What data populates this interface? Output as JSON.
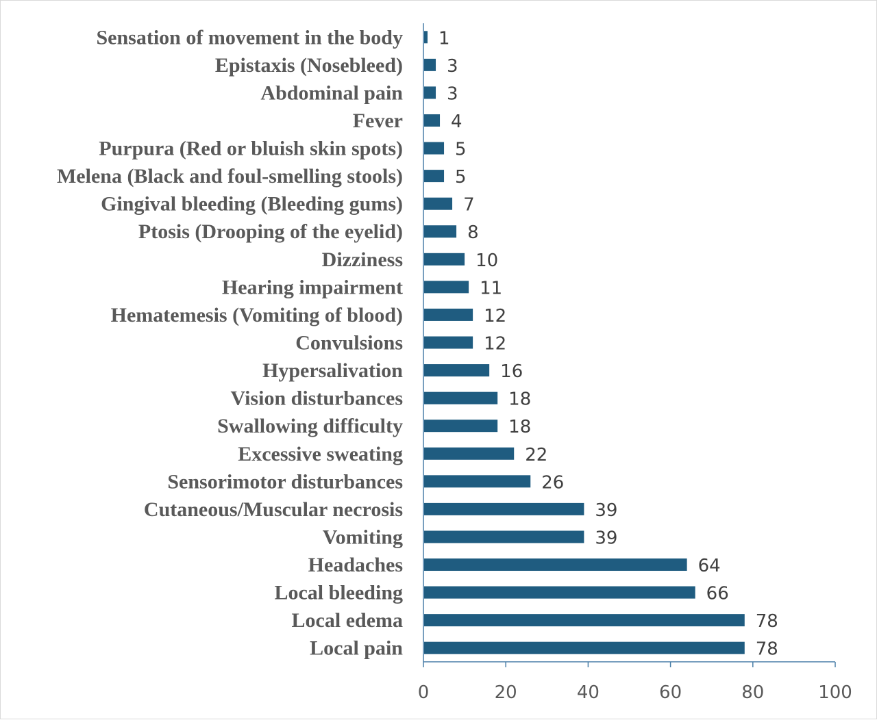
{
  "chart_data": {
    "type": "bar",
    "orientation": "horizontal",
    "title": "",
    "xlabel": "",
    "ylabel": "",
    "xlim": [
      0,
      100
    ],
    "xticks": [
      0,
      20,
      40,
      60,
      80,
      100
    ],
    "grid": false,
    "legend": "none",
    "bar_color": "#1f5c80",
    "axis_color": "#4a7fa8",
    "categories": [
      "Sensation of movement in the body",
      "Epistaxis (Nosebleed)",
      "Abdominal pain",
      "Fever",
      "Purpura (Red or bluish skin spots)",
      "Melena (Black and foul-smelling stools)",
      "Gingival bleeding (Bleeding gums)",
      "Ptosis (Drooping of the eyelid)",
      "Dizziness",
      "Hearing impairment",
      "Hematemesis (Vomiting of blood)",
      "Convulsions",
      "Hypersalivation",
      "Vision disturbances",
      "Swallowing difficulty",
      "Excessive sweating",
      "Sensorimotor disturbances",
      "Cutaneous/Muscular necrosis",
      "Vomiting",
      "Headaches",
      "Local bleeding",
      "Local edema",
      "Local pain"
    ],
    "values": [
      1,
      3,
      3,
      4,
      5,
      5,
      7,
      8,
      10,
      11,
      12,
      12,
      16,
      18,
      18,
      22,
      26,
      39,
      39,
      64,
      66,
      78,
      78
    ],
    "data_labels": [
      "1",
      "3",
      "3",
      "4",
      "5",
      "5",
      "7",
      "8",
      "10",
      "11",
      "12",
      "12",
      "16",
      "18",
      "18",
      "22",
      "26",
      "39",
      "39",
      "64",
      "66",
      "78",
      "78"
    ]
  }
}
